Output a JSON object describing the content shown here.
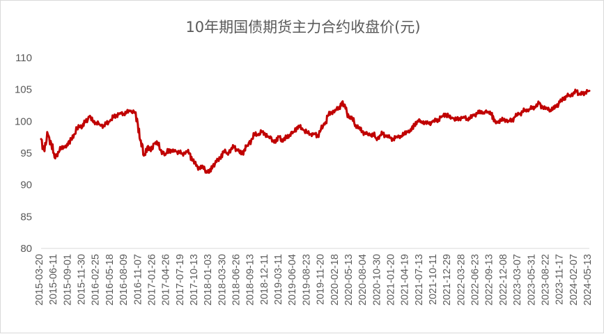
{
  "chart_data": {
    "type": "line",
    "title": "10年期国债期货主力合约收盘价(元)",
    "xlabel": "",
    "ylabel": "",
    "ylim": [
      80,
      110
    ],
    "yticks": [
      80,
      85,
      90,
      95,
      100,
      105,
      110
    ],
    "grid": false,
    "legend": "none",
    "x_start": "2015-03-20",
    "x_end": "2024-06-28",
    "xtick_labels": [
      "2015-03-20",
      "2015-06-11",
      "2015-09-01",
      "2015-11-30",
      "2016-02-25",
      "2016-05-18",
      "2016-08-09",
      "2016-11-07",
      "2017-01-26",
      "2017-04-26",
      "2017-07-19",
      "2017-10-13",
      "2018-01-03",
      "2018-03-30",
      "2018-06-26",
      "2018-09-13",
      "2018-12-11",
      "2019-03-11",
      "2019-06-04",
      "2019-08-23",
      "2019-11-20",
      "2020-02-18",
      "2020-05-13",
      "2020-08-04",
      "2020-10-30",
      "2021-01-20",
      "2021-04-19",
      "2021-07-13",
      "2021-10-11",
      "2021-12-29",
      "2022-03-28",
      "2022-06-23",
      "2022-09-13",
      "2022-12-08",
      "2023-03-07",
      "2023-05-31",
      "2023-08-22",
      "2023-11-17",
      "2024-02-07",
      "2024-05-13"
    ],
    "series": [
      {
        "color": "#c00000",
        "points": [
          [
            "2015-03-20",
            97.2
          ],
          [
            "2015-04-10",
            95.3
          ],
          [
            "2015-05-01",
            97.9
          ],
          [
            "2015-05-22",
            96.5
          ],
          [
            "2015-06-11",
            94.3
          ],
          [
            "2015-07-03",
            95.2
          ],
          [
            "2015-07-24",
            95.8
          ],
          [
            "2015-08-14",
            96.0
          ],
          [
            "2015-09-01",
            96.2
          ],
          [
            "2015-09-22",
            97.3
          ],
          [
            "2015-10-14",
            98.0
          ],
          [
            "2015-11-06",
            99.4
          ],
          [
            "2015-11-30",
            99.1
          ],
          [
            "2015-12-20",
            100.0
          ],
          [
            "2016-01-12",
            100.7
          ],
          [
            "2016-02-02",
            100.0
          ],
          [
            "2016-02-25",
            99.8
          ],
          [
            "2016-03-17",
            99.5
          ],
          [
            "2016-04-08",
            99.3
          ],
          [
            "2016-04-27",
            99.6
          ],
          [
            "2016-05-18",
            100.0
          ],
          [
            "2016-06-08",
            100.6
          ],
          [
            "2016-06-29",
            101.0
          ],
          [
            "2016-07-20",
            101.3
          ],
          [
            "2016-08-09",
            101.2
          ],
          [
            "2016-08-30",
            101.4
          ],
          [
            "2016-09-20",
            101.6
          ],
          [
            "2016-10-15",
            101.5
          ],
          [
            "2016-11-07",
            99.5
          ],
          [
            "2016-11-25",
            97.0
          ],
          [
            "2016-12-14",
            94.6
          ],
          [
            "2017-01-05",
            96.0
          ],
          [
            "2017-01-26",
            95.3
          ],
          [
            "2017-02-15",
            96.5
          ],
          [
            "2017-03-08",
            96.6
          ],
          [
            "2017-03-30",
            95.5
          ],
          [
            "2017-04-26",
            94.7
          ],
          [
            "2017-05-18",
            95.6
          ],
          [
            "2017-06-08",
            95.2
          ],
          [
            "2017-06-29",
            95.3
          ],
          [
            "2017-07-19",
            95.1
          ],
          [
            "2017-08-10",
            94.9
          ],
          [
            "2017-09-01",
            95.3
          ],
          [
            "2017-09-22",
            95.0
          ],
          [
            "2017-10-13",
            93.8
          ],
          [
            "2017-11-02",
            93.0
          ],
          [
            "2017-11-23",
            92.6
          ],
          [
            "2017-12-14",
            92.9
          ],
          [
            "2018-01-03",
            92.2
          ],
          [
            "2018-01-24",
            92.0
          ],
          [
            "2018-02-13",
            93.0
          ],
          [
            "2018-03-08",
            93.6
          ],
          [
            "2018-03-30",
            94.2
          ],
          [
            "2018-04-20",
            95.3
          ],
          [
            "2018-05-14",
            95.0
          ],
          [
            "2018-06-05",
            95.6
          ],
          [
            "2018-06-26",
            96.0
          ],
          [
            "2018-07-17",
            95.4
          ],
          [
            "2018-08-08",
            94.8
          ],
          [
            "2018-08-29",
            95.6
          ],
          [
            "2018-09-13",
            96.2
          ],
          [
            "2018-10-10",
            97.2
          ],
          [
            "2018-11-01",
            98.0
          ],
          [
            "2018-11-20",
            97.8
          ],
          [
            "2018-12-11",
            98.3
          ],
          [
            "2019-01-03",
            98.0
          ],
          [
            "2019-01-24",
            97.6
          ],
          [
            "2019-02-20",
            97.0
          ],
          [
            "2019-03-11",
            96.8
          ],
          [
            "2019-04-01",
            97.6
          ],
          [
            "2019-04-22",
            96.8
          ],
          [
            "2019-05-14",
            97.5
          ],
          [
            "2019-06-04",
            97.9
          ],
          [
            "2019-06-25",
            98.3
          ],
          [
            "2019-07-16",
            99.0
          ],
          [
            "2019-08-05",
            99.1
          ],
          [
            "2019-08-23",
            98.7
          ],
          [
            "2019-09-16",
            98.2
          ],
          [
            "2019-10-14",
            98.0
          ],
          [
            "2019-11-01",
            98.1
          ],
          [
            "2019-11-20",
            97.7
          ],
          [
            "2019-12-12",
            98.6
          ],
          [
            "2020-01-06",
            99.5
          ],
          [
            "2020-01-23",
            100.8
          ],
          [
            "2020-02-18",
            101.4
          ],
          [
            "2020-03-09",
            101.8
          ],
          [
            "2020-04-01",
            102.0
          ],
          [
            "2020-04-21",
            103.0
          ],
          [
            "2020-05-13",
            102.0
          ],
          [
            "2020-06-03",
            100.6
          ],
          [
            "2020-06-24",
            100.5
          ],
          [
            "2020-07-15",
            99.4
          ],
          [
            "2020-08-04",
            99.0
          ],
          [
            "2020-08-25",
            98.4
          ],
          [
            "2020-09-15",
            98.0
          ],
          [
            "2020-10-12",
            97.8
          ],
          [
            "2020-10-30",
            98.0
          ],
          [
            "2020-11-19",
            97.3
          ],
          [
            "2020-12-10",
            97.7
          ],
          [
            "2020-12-31",
            98.1
          ],
          [
            "2021-01-20",
            97.6
          ],
          [
            "2021-02-10",
            97.4
          ],
          [
            "2021-03-05",
            97.2
          ],
          [
            "2021-03-26",
            97.6
          ],
          [
            "2021-04-19",
            97.7
          ],
          [
            "2021-05-12",
            98.0
          ],
          [
            "2021-06-02",
            98.4
          ],
          [
            "2021-06-23",
            98.5
          ],
          [
            "2021-07-13",
            99.5
          ],
          [
            "2021-08-03",
            100.1
          ],
          [
            "2021-08-24",
            100.0
          ],
          [
            "2021-09-15",
            99.8
          ],
          [
            "2021-10-11",
            99.6
          ],
          [
            "2021-11-01",
            99.9
          ],
          [
            "2021-11-22",
            100.1
          ],
          [
            "2021-12-10",
            100.3
          ],
          [
            "2021-12-29",
            100.8
          ],
          [
            "2022-01-20",
            101.2
          ],
          [
            "2022-02-14",
            100.6
          ],
          [
            "2022-03-07",
            100.5
          ],
          [
            "2022-03-28",
            100.2
          ],
          [
            "2022-04-19",
            100.5
          ],
          [
            "2022-05-12",
            100.7
          ],
          [
            "2022-06-02",
            100.4
          ],
          [
            "2022-06-23",
            100.5
          ],
          [
            "2022-07-14",
            100.9
          ],
          [
            "2022-08-04",
            101.2
          ],
          [
            "2022-08-24",
            101.5
          ],
          [
            "2022-09-13",
            101.4
          ],
          [
            "2022-10-10",
            101.5
          ],
          [
            "2022-11-01",
            101.3
          ],
          [
            "2022-11-16",
            100.0
          ],
          [
            "2022-12-08",
            99.8
          ],
          [
            "2022-12-29",
            100.1
          ],
          [
            "2023-01-20",
            100.4
          ],
          [
            "2023-02-14",
            100.0
          ],
          [
            "2023-03-07",
            100.2
          ],
          [
            "2023-03-28",
            100.7
          ],
          [
            "2023-04-19",
            101.1
          ],
          [
            "2023-05-12",
            101.5
          ],
          [
            "2023-05-31",
            101.8
          ],
          [
            "2023-06-21",
            101.9
          ],
          [
            "2023-07-12",
            102.1
          ],
          [
            "2023-08-02",
            102.3
          ],
          [
            "2023-08-22",
            102.8
          ],
          [
            "2023-09-13",
            102.2
          ],
          [
            "2023-10-11",
            102.0
          ],
          [
            "2023-10-30",
            101.8
          ],
          [
            "2023-11-17",
            102.0
          ],
          [
            "2023-12-08",
            102.4
          ],
          [
            "2023-12-29",
            103.0
          ],
          [
            "2024-01-19",
            103.5
          ],
          [
            "2024-02-07",
            104.0
          ],
          [
            "2024-02-28",
            104.1
          ],
          [
            "2024-03-20",
            104.4
          ],
          [
            "2024-04-11",
            104.7
          ],
          [
            "2024-04-30",
            104.2
          ],
          [
            "2024-05-13",
            104.3
          ],
          [
            "2024-06-03",
            104.6
          ],
          [
            "2024-06-28",
            104.8
          ]
        ]
      }
    ]
  }
}
